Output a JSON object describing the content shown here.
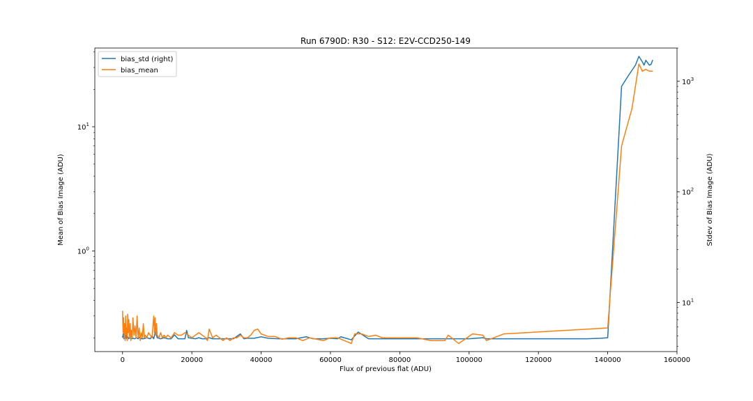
{
  "chart_data": {
    "type": "line",
    "title": "Run 6790D: R30 - S12: E2V-CCD250-149",
    "xlabel": "Flux of previous flat (ADU)",
    "ylabel_left": "Mean of Bias Image (ADU)",
    "ylabel_right": "Stdev of Bias Image (ADU)",
    "xlim": [
      -8000,
      160000
    ],
    "x_ticks": [
      0,
      20000,
      40000,
      60000,
      80000,
      100000,
      120000,
      140000,
      160000
    ],
    "left_scale": "log",
    "left_ylim": [
      0.155,
      43
    ],
    "left_ticks": [
      {
        "value": 1,
        "label": "10^0"
      },
      {
        "value": 10,
        "label": "10^1"
      }
    ],
    "right_scale": "log",
    "right_ylim": [
      3.6,
      2000
    ],
    "right_ticks": [
      {
        "value": 10,
        "label": "10^1"
      },
      {
        "value": 100,
        "label": "10^2"
      },
      {
        "value": 1000,
        "label": "10^3"
      }
    ],
    "legend_position": "top-left",
    "grid": false,
    "series": [
      {
        "name": "bias_std (right)",
        "axis": "right",
        "color": "#1f77b4",
        "x": [
          0,
          200,
          400,
          600,
          800,
          1000,
          1200,
          1500,
          1800,
          2100,
          2500,
          3000,
          3500,
          4000,
          4500,
          5000,
          5500,
          6000,
          7000,
          8000,
          8500,
          9000,
          9500,
          10000,
          11000,
          12000,
          13000,
          14000,
          15000,
          16000,
          17000,
          18000,
          18500,
          19000,
          20000,
          21000,
          22000,
          23000,
          24000,
          25000,
          26000,
          28000,
          30000,
          32000,
          34000,
          35000,
          36000,
          38000,
          40000,
          42000,
          45000,
          48000,
          50000,
          53000,
          55000,
          58000,
          60000,
          62000,
          63000,
          66000,
          68000,
          71000,
          75000,
          80000,
          85000,
          90000,
          93000,
          95000,
          100000,
          102000,
          104000,
          105000,
          110000,
          120000,
          130000,
          134000,
          138000,
          140000,
          144000,
          146000,
          148000,
          149000,
          150000,
          150500,
          151000,
          152000,
          152500,
          153000
        ],
        "y": [
          4.8,
          5.2,
          4.7,
          5.0,
          4.7,
          5.1,
          4.7,
          4.9,
          4.7,
          4.8,
          4.7,
          4.75,
          4.7,
          4.8,
          4.7,
          4.9,
          4.7,
          4.7,
          4.8,
          4.7,
          5.0,
          4.7,
          5.5,
          4.8,
          4.7,
          4.8,
          4.7,
          4.7,
          5.1,
          4.7,
          4.7,
          4.7,
          5.6,
          4.8,
          4.75,
          4.7,
          4.8,
          4.7,
          4.7,
          4.8,
          4.7,
          4.7,
          4.7,
          4.7,
          5.2,
          4.7,
          4.75,
          4.75,
          4.9,
          4.75,
          4.7,
          4.7,
          4.7,
          4.9,
          4.7,
          4.7,
          4.75,
          4.7,
          4.9,
          4.6,
          5.4,
          4.7,
          4.7,
          4.7,
          4.7,
          4.7,
          4.7,
          4.7,
          4.7,
          4.75,
          4.8,
          4.7,
          4.7,
          4.7,
          4.7,
          4.7,
          4.75,
          4.8,
          900,
          1130,
          1400,
          1680,
          1500,
          1400,
          1550,
          1400,
          1420,
          1560
        ]
      },
      {
        "name": "bias_mean",
        "axis": "left",
        "color": "#ff7f0e",
        "x": [
          0,
          150,
          300,
          450,
          600,
          750,
          900,
          1050,
          1200,
          1350,
          1500,
          1650,
          1800,
          2000,
          2200,
          2400,
          2600,
          2800,
          3000,
          3300,
          3600,
          3900,
          4200,
          4500,
          4800,
          5100,
          5400,
          5700,
          6000,
          6300,
          6600,
          7000,
          7500,
          8000,
          8500,
          9000,
          9200,
          9400,
          9600,
          9800,
          10000,
          10500,
          11000,
          11500,
          12000,
          12500,
          13000,
          14000,
          15000,
          16000,
          17000,
          18000,
          19000,
          20000,
          21000,
          22000,
          23000,
          24000,
          24500,
          25000,
          26000,
          27000,
          28000,
          29000,
          30000,
          31000,
          32000,
          33000,
          34000,
          35000,
          36000,
          37000,
          38000,
          39000,
          40000,
          42000,
          44000,
          46000,
          48000,
          50000,
          52000,
          54000,
          56000,
          58000,
          60000,
          62000,
          63000,
          64000,
          65000,
          66000,
          67000,
          69000,
          71000,
          73000,
          75000,
          80000,
          85000,
          89000,
          93000,
          94000,
          97000,
          101000,
          104000,
          105000,
          110000,
          140000,
          144000,
          147000,
          149000,
          150000,
          151000,
          152000,
          153000
        ],
        "y": [
          0.33,
          0.22,
          0.29,
          0.2,
          0.26,
          0.19,
          0.3,
          0.21,
          0.24,
          0.19,
          0.31,
          0.22,
          0.28,
          0.2,
          0.26,
          0.19,
          0.23,
          0.2,
          0.29,
          0.21,
          0.25,
          0.2,
          0.3,
          0.2,
          0.24,
          0.19,
          0.22,
          0.2,
          0.26,
          0.2,
          0.21,
          0.2,
          0.22,
          0.21,
          0.2,
          0.3,
          0.22,
          0.29,
          0.21,
          0.26,
          0.21,
          0.2,
          0.22,
          0.2,
          0.21,
          0.2,
          0.21,
          0.2,
          0.22,
          0.21,
          0.21,
          0.22,
          0.21,
          0.2,
          0.21,
          0.22,
          0.21,
          0.2,
          0.19,
          0.235,
          0.2,
          0.21,
          0.2,
          0.19,
          0.2,
          0.19,
          0.2,
          0.2,
          0.21,
          0.2,
          0.2,
          0.21,
          0.23,
          0.235,
          0.215,
          0.205,
          0.205,
          0.195,
          0.2,
          0.2,
          0.19,
          0.2,
          0.195,
          0.19,
          0.2,
          0.2,
          0.195,
          0.19,
          0.185,
          0.18,
          0.215,
          0.215,
          0.205,
          0.21,
          0.2,
          0.2,
          0.2,
          0.19,
          0.19,
          0.21,
          0.18,
          0.215,
          0.21,
          0.19,
          0.215,
          0.24,
          7,
          14,
          32,
          28,
          29,
          28,
          28
        ]
      }
    ]
  }
}
